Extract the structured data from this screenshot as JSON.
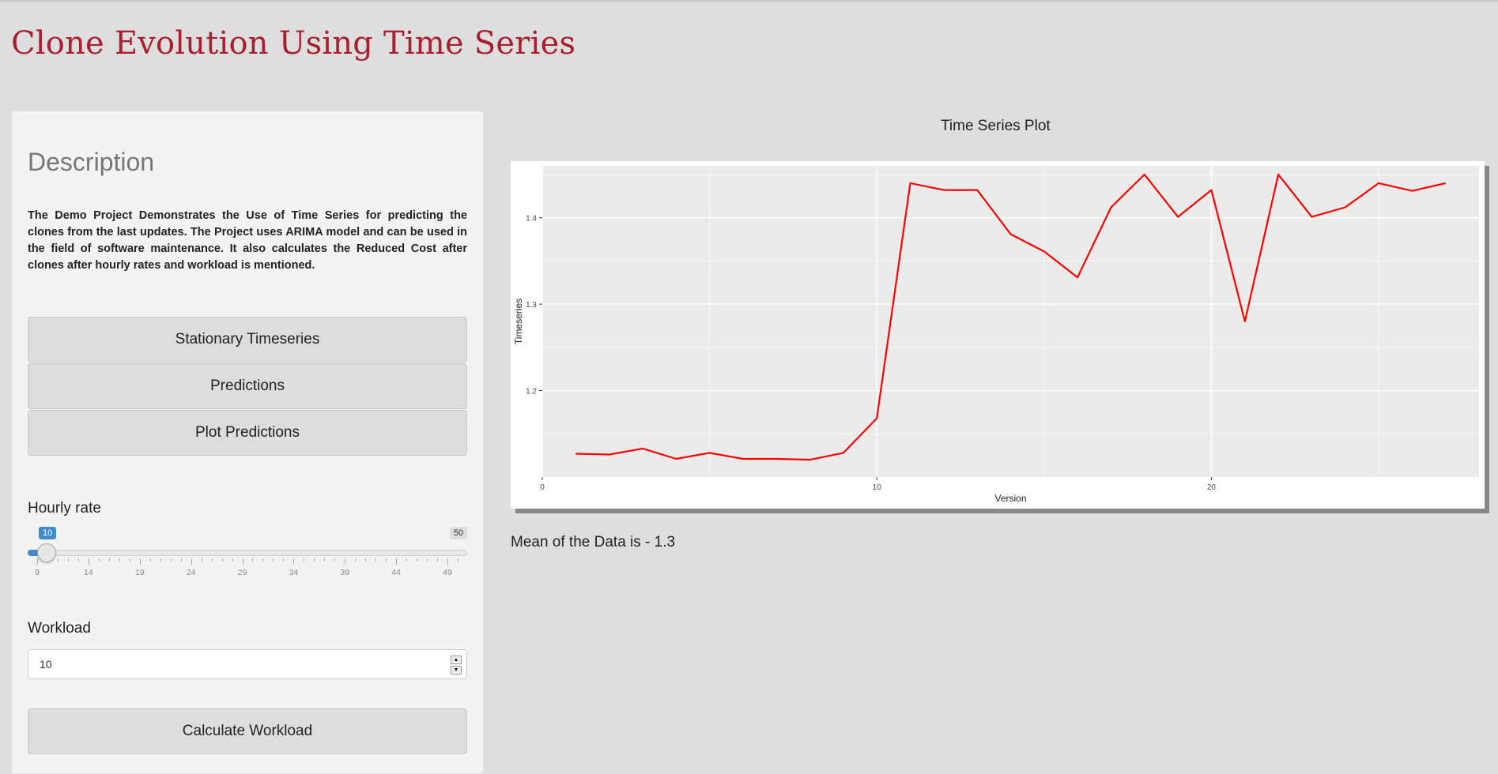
{
  "header": {
    "title": "Clone Evolution Using Time Series"
  },
  "sidebar": {
    "heading": "Description",
    "description": "The Demo Project Demonstrates the Use of Time Series for predicting the clones from the last updates. The Project uses ARIMA model and can be used in the field of software maintenance. It also calculates the Reduced Cost after clones after hourly rates and workload is mentioned.",
    "buttons": {
      "stationary": "Stationary Timeseries",
      "predictions": "Predictions",
      "plot_predictions": "Plot Predictions",
      "calculate": "Calculate Workload"
    },
    "hourly_rate": {
      "label": "Hourly rate",
      "value": "10",
      "min": 9,
      "max_label": "50",
      "ticks": [
        "9",
        "14",
        "19",
        "24",
        "29",
        "34",
        "39",
        "44",
        "49"
      ]
    },
    "workload": {
      "label": "Workload",
      "value": "10"
    }
  },
  "main": {
    "plot_title": "Time Series Plot",
    "mean_text": "Mean of the Data is - 1.3"
  },
  "chart_data": {
    "type": "line",
    "xlabel": "Version",
    "ylabel": "Timeseries",
    "xlim": [
      0,
      28
    ],
    "ylim": [
      1.1,
      1.46
    ],
    "x_ticks": [
      0,
      10,
      20
    ],
    "y_ticks": [
      1.2,
      1.3,
      1.4
    ],
    "grid": true,
    "line_color": "#ff0000",
    "panel_color": "#ebebeb",
    "series": [
      {
        "x": [
          1,
          2,
          3,
          4,
          5,
          6,
          7,
          8,
          9,
          10,
          11,
          12,
          13,
          14,
          15,
          16,
          17,
          18,
          19,
          20,
          21,
          22,
          23,
          24,
          25,
          26,
          27
        ],
        "values": [
          1.127,
          1.126,
          1.133,
          1.121,
          1.128,
          1.121,
          1.121,
          1.12,
          1.128,
          1.168,
          1.44,
          1.432,
          1.432,
          1.381,
          1.361,
          1.331,
          1.412,
          1.45,
          1.401,
          1.432,
          1.28,
          1.45,
          1.401,
          1.412,
          1.44,
          1.431,
          1.44
        ]
      }
    ]
  }
}
